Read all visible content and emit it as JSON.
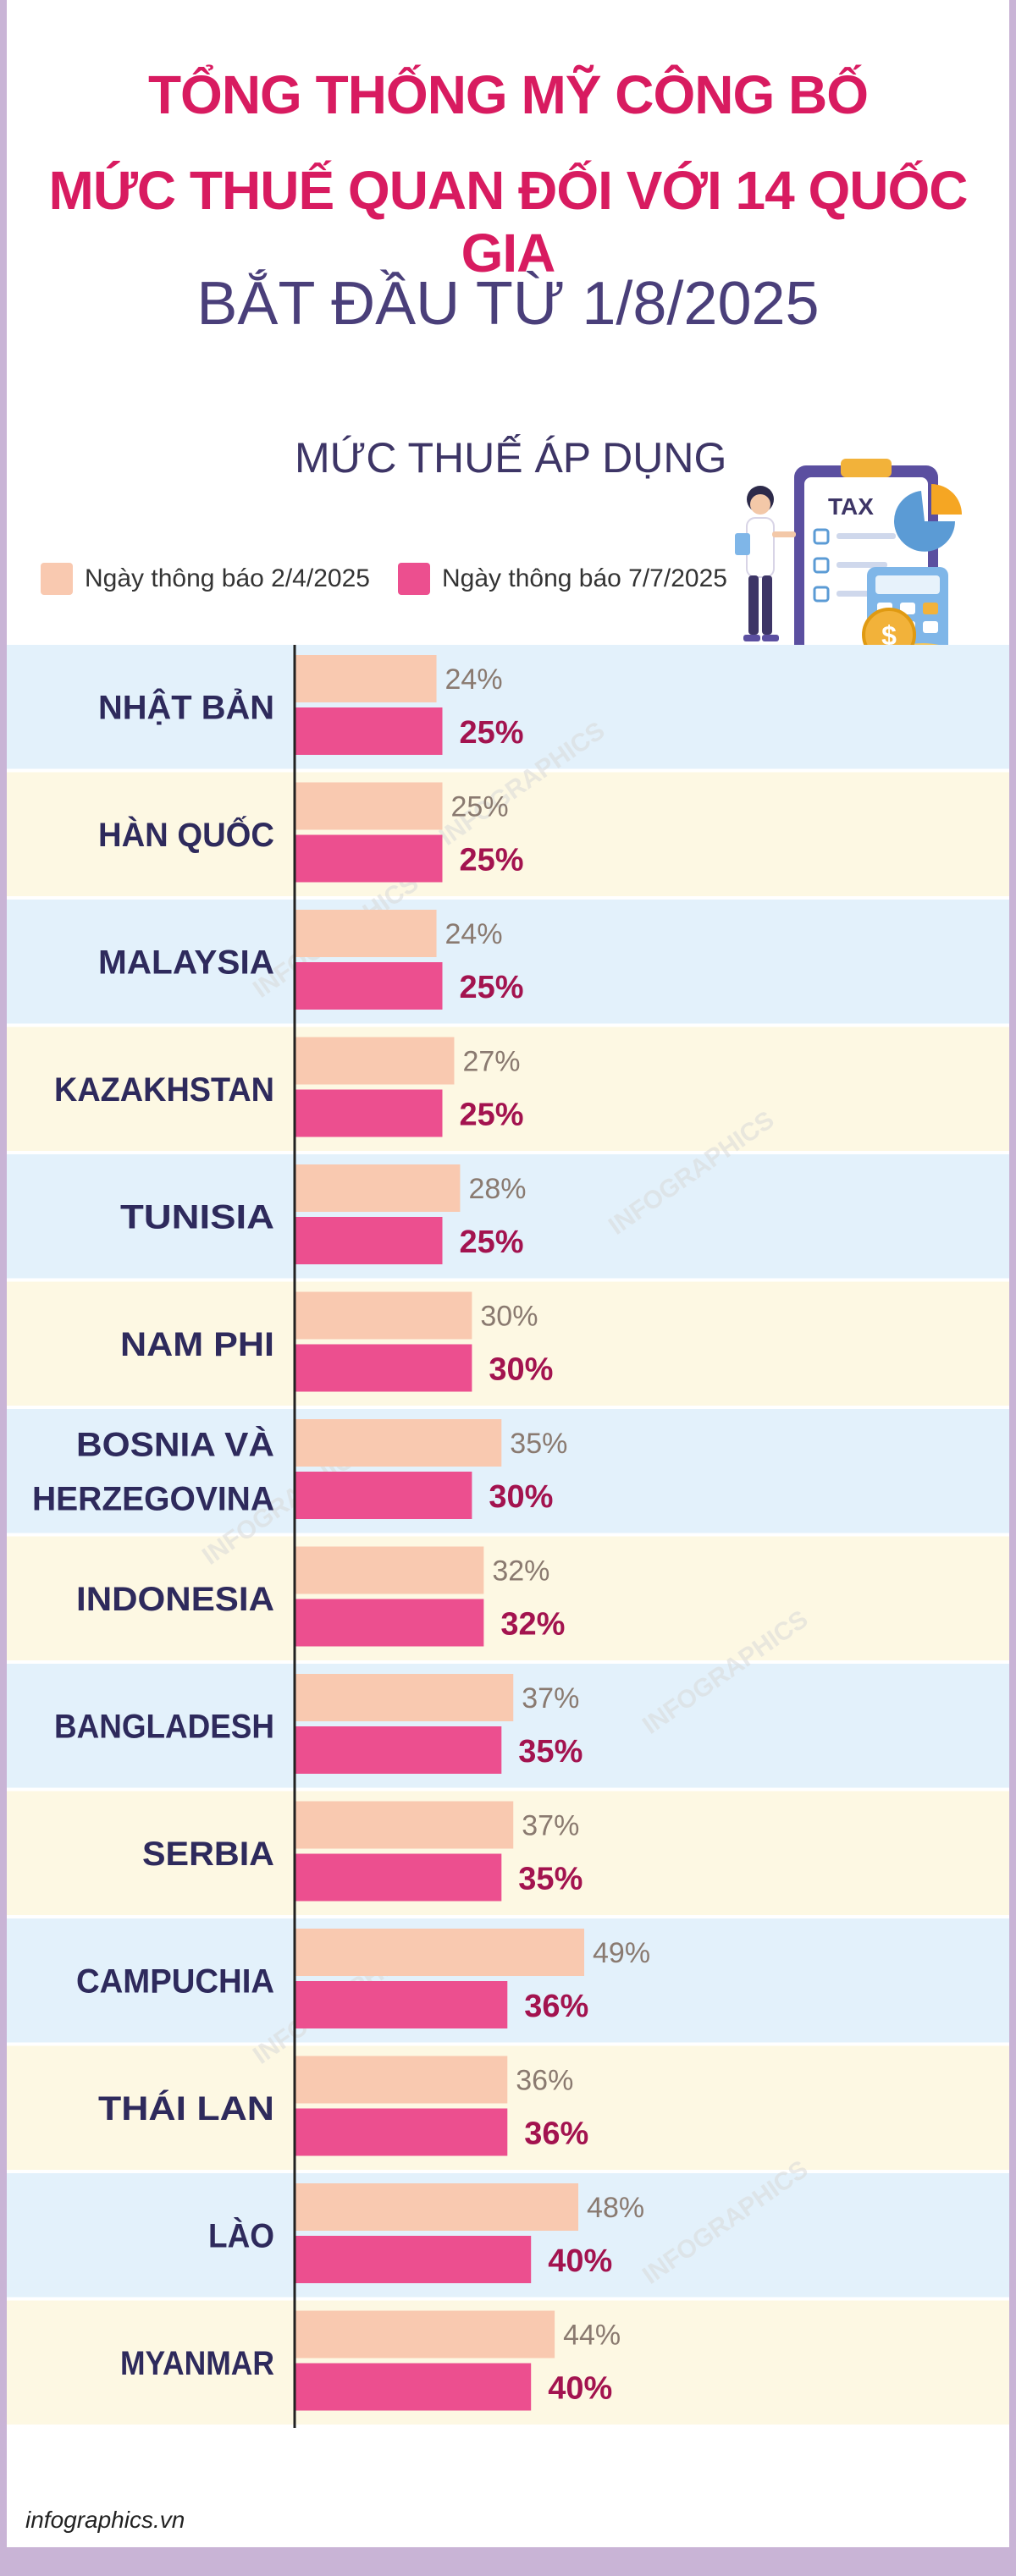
{
  "header": {
    "title_line1": "TỔNG THỐNG MỸ CÔNG BỐ",
    "title_line2": "MỨC THUẾ QUAN ĐỐI VỚI 14 QUỐC GIA",
    "subtitle": "BẮT ĐẦU TỪ 1/8/2025"
  },
  "chart_heading": "MỨC THUẾ ÁP DỤNG",
  "illustration": {
    "tax_label": "TAX",
    "coin_symbol": "$"
  },
  "watermark_text": "INFOGRAPHICS",
  "footer": "infographics.vn",
  "colors": {
    "series_1": "#f9c9b0",
    "series_2": "#ec4f8f",
    "label_1": "#8a7a70",
    "label_2": "#a3134f",
    "row_blue": "#e3f1fb",
    "row_cream": "#fdf8e3",
    "title": "#d81b60",
    "subtitle": "#4a3f7a"
  },
  "chart_data": {
    "type": "bar",
    "orientation": "horizontal",
    "categories": [
      [
        "NHẬT BẢN"
      ],
      [
        "HÀN QUỐC"
      ],
      [
        "MALAYSIA"
      ],
      [
        "KAZAKHSTAN"
      ],
      [
        "TUNISIA"
      ],
      [
        "NAM PHI"
      ],
      [
        "BOSNIA VÀ",
        "HERZEGOVINA"
      ],
      [
        "INDONESIA"
      ],
      [
        "BANGLADESH"
      ],
      [
        "SERBIA"
      ],
      [
        "CAMPUCHIA"
      ],
      [
        "THÁI LAN"
      ],
      [
        "LÀO"
      ],
      [
        "MYANMAR"
      ]
    ],
    "series": [
      {
        "name": "Ngày thông báo 2/4/2025",
        "values": [
          24,
          25,
          24,
          27,
          28,
          30,
          35,
          32,
          37,
          37,
          49,
          36,
          48,
          44
        ]
      },
      {
        "name": "Ngày thông báo 7/7/2025",
        "values": [
          25,
          25,
          25,
          25,
          25,
          30,
          30,
          32,
          35,
          35,
          36,
          36,
          40,
          40
        ]
      }
    ],
    "value_suffix": "%",
    "legend": "top-left"
  }
}
